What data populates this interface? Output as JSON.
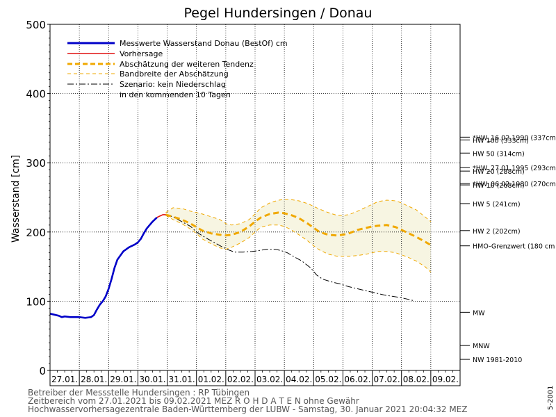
{
  "chart_data": {
    "type": "line",
    "title": "Pegel Hundersingen / Donau",
    "ylabel": "Wasserstand [cm]",
    "ylim": [
      0,
      500
    ],
    "y_ticks": [
      "0",
      "100",
      "200",
      "300",
      "400",
      "500"
    ],
    "x_labels": [
      "27.01.",
      "28.01.",
      "29.01.",
      "30.01.",
      "31.01.",
      "01.02.",
      "02.02.",
      "03.02.",
      "04.02.",
      "05.02.",
      "06.02.",
      "07.02.",
      "08.02.",
      "09.02."
    ],
    "grid": true,
    "legend_position": "top-left",
    "legend": [
      "Messwerte Wasserstand Donau   (BestOf)   cm",
      "Vorhersage",
      "Abschätzung der weiteren Tendenz",
      "Bandbreite der Abschätzung",
      "Szenario: kein Niederschlag",
      "in den kommenden 10 Tagen"
    ],
    "colors": {
      "measured": "#0000c8",
      "forecast": "#e01010",
      "tendency": "#f0a800",
      "band_fill": "#f7f5e2",
      "band_line": "#f0a800",
      "scenario": "#000000",
      "grid": "#000000"
    },
    "series": {
      "measured": {
        "x": [
          0.0,
          0.2,
          0.3,
          0.4,
          0.5,
          0.7,
          0.9,
          1.0,
          1.2,
          1.4,
          1.5,
          1.6,
          1.7,
          1.8,
          1.9,
          2.0,
          2.1,
          2.2,
          2.3,
          2.4,
          2.5,
          2.6,
          2.7,
          2.8,
          2.9,
          3.0,
          3.1,
          3.2,
          3.3,
          3.4,
          3.5,
          3.6,
          3.65
        ],
        "y": [
          82,
          80,
          79,
          77,
          78,
          77,
          77,
          77,
          76,
          77,
          80,
          88,
          95,
          100,
          107,
          118,
          132,
          148,
          160,
          166,
          172,
          175,
          178,
          180,
          182,
          185,
          190,
          198,
          205,
          210,
          215,
          219,
          221
        ]
      },
      "forecast": {
        "x": [
          3.65,
          3.75,
          3.85,
          3.95
        ],
        "y": [
          221,
          223,
          225,
          225
        ]
      },
      "tendency": {
        "x": [
          3.95,
          4.2,
          4.5,
          4.8,
          5.0,
          5.2,
          5.5,
          5.8,
          6.0,
          6.2,
          6.5,
          6.8,
          7.0,
          7.2,
          7.5,
          7.8,
          8.0,
          8.2,
          8.5,
          8.8,
          9.0,
          9.2,
          9.5,
          9.8,
          10.0,
          10.2,
          10.5,
          10.8,
          11.0,
          11.2,
          11.5,
          11.8,
          12.0,
          12.2,
          12.5,
          12.8,
          13.0
        ],
        "y": [
          225,
          222,
          218,
          212,
          207,
          202,
          198,
          196,
          195,
          196,
          200,
          208,
          215,
          221,
          226,
          228,
          227,
          225,
          220,
          212,
          206,
          200,
          196,
          195,
          196,
          198,
          203,
          206,
          208,
          209,
          210,
          207,
          203,
          199,
          193,
          186,
          181
        ]
      },
      "band_upper": {
        "x": [
          3.95,
          4.2,
          4.5,
          4.8,
          5.0,
          5.2,
          5.5,
          5.8,
          6.0,
          6.2,
          6.5,
          6.8,
          7.0,
          7.2,
          7.5,
          7.8,
          8.0,
          8.2,
          8.5,
          8.8,
          9.0,
          9.2,
          9.5,
          9.8,
          10.0,
          10.2,
          10.5,
          10.8,
          11.0,
          11.2,
          11.5,
          11.8,
          12.0,
          12.2,
          12.5,
          12.8,
          13.0
        ],
        "y": [
          228,
          235,
          234,
          230,
          228,
          226,
          222,
          218,
          212,
          210,
          212,
          218,
          226,
          235,
          242,
          246,
          247,
          247,
          245,
          241,
          237,
          233,
          228,
          224,
          224,
          225,
          230,
          236,
          240,
          244,
          246,
          245,
          242,
          238,
          232,
          222,
          215
        ]
      },
      "band_lower": {
        "x": [
          3.95,
          4.2,
          4.5,
          4.8,
          5.0,
          5.2,
          5.5,
          5.8,
          6.0,
          6.2,
          6.5,
          6.8,
          7.0,
          7.2,
          7.5,
          7.8,
          8.0,
          8.2,
          8.5,
          8.8,
          9.0,
          9.2,
          9.5,
          9.8,
          10.0,
          10.2,
          10.5,
          10.8,
          11.0,
          11.2,
          11.5,
          11.8,
          12.0,
          12.2,
          12.5,
          12.8,
          13.0
        ],
        "y": [
          224,
          218,
          212,
          204,
          198,
          190,
          183,
          177,
          175,
          178,
          184,
          192,
          200,
          207,
          210,
          210,
          208,
          204,
          196,
          187,
          180,
          174,
          168,
          165,
          165,
          165,
          166,
          168,
          170,
          172,
          172,
          170,
          167,
          164,
          158,
          150,
          142
        ]
      },
      "scenario": {
        "x": [
          3.95,
          4.2,
          4.5,
          4.8,
          5.0,
          5.3,
          5.6,
          5.9,
          6.1,
          6.3,
          6.6,
          6.9,
          7.1,
          7.4,
          7.7,
          7.9,
          8.1,
          8.3,
          8.6,
          8.9,
          9.1,
          9.3,
          9.6,
          9.9,
          10.2,
          10.5,
          10.8,
          11.1,
          11.4,
          11.7,
          12.0,
          12.2,
          12.4
        ],
        "y": [
          225,
          222,
          215,
          208,
          200,
          192,
          185,
          178,
          174,
          171,
          171,
          172,
          173,
          175,
          175,
          173,
          170,
          165,
          158,
          148,
          138,
          132,
          128,
          125,
          121,
          118,
          115,
          112,
          109,
          107,
          105,
          103,
          101
        ]
      }
    },
    "reference_lines": [
      {
        "label": "*HW_16.02.1990 (337cm)",
        "value": 337
      },
      {
        "label": "HW 100 (333cm)",
        "value": 333
      },
      {
        "label": "HW 50 (314cm)",
        "value": 314
      },
      {
        "label": "*HW_27.01.1995 (293cm)",
        "value": 293
      },
      {
        "label": "HW 20 (288cm)",
        "value": 288
      },
      {
        "label": "*HW_06.02.1980 (270cm)",
        "value": 270
      },
      {
        "label": "HW 10 (268cm)",
        "value": 268
      },
      {
        "label": "HW 5 (241cm)",
        "value": 241
      },
      {
        "label": "HW 2 (202cm)",
        "value": 202
      },
      {
        "label": "HMO-Grenzwert (180 cm",
        "value": 180
      },
      {
        "label": "MW",
        "value": 84
      },
      {
        "label": "MNW",
        "value": 36
      },
      {
        "label": "NW 1981-2010",
        "value": 16
      }
    ]
  },
  "footer": {
    "line1": "Betreiber der Messstelle Hundersingen : RP Tübingen",
    "line2": "Zeitbereich vom 27.01.2021 bis 09.02.2021    MEZ     R O H D A T E N ohne Gewähr",
    "line3": "Hochwasservorhersagezentrale Baden-Württemberg der LUBW - Samstag, 30. Januar 2021 20:04:32 MEZ",
    "side_code": "5-2001"
  }
}
